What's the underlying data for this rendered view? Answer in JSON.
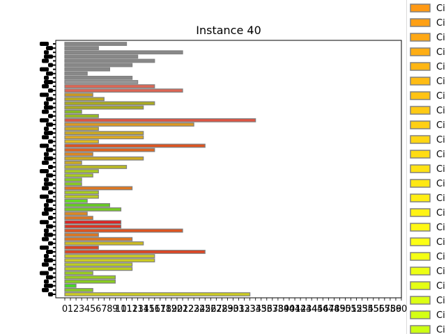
{
  "chart_data": {
    "type": "bar",
    "orientation": "horizontal",
    "title": "Instance 40",
    "xlabel": "",
    "ylabel": "",
    "xlim": [
      0,
      60
    ],
    "x_ticks": [
      "0",
      "1",
      "2",
      "3",
      "4",
      "5",
      "6",
      "7",
      "8",
      "9",
      "10",
      "11",
      "12",
      "13",
      "14",
      "15",
      "16",
      "17",
      "18",
      "19",
      "20",
      "21",
      "22",
      "23",
      "24",
      "25",
      "26",
      "27",
      "28",
      "29",
      "30",
      "31",
      "32",
      "33",
      "34",
      "35",
      "36",
      "37",
      "38",
      "39",
      "40",
      "41",
      "42",
      "43",
      "44",
      "45",
      "46",
      "47",
      "48",
      "49",
      "50",
      "51",
      "52",
      "53",
      "54",
      "55",
      "56",
      "57",
      "58",
      "59",
      "60"
    ],
    "grid": false,
    "legend_position": "right",
    "bar_edge_color": "#808080",
    "bars": [
      {
        "value": 33,
        "color": "#cccc22"
      },
      {
        "value": 5,
        "color": "#88cc22"
      },
      {
        "value": 2,
        "color": "#44dd22"
      },
      {
        "value": 9,
        "color": "#88cc22"
      },
      {
        "value": 9,
        "color": "#99cc22"
      },
      {
        "value": 5,
        "color": "#99cc22"
      },
      {
        "value": 12,
        "color": "#bbcc22"
      },
      {
        "value": 12,
        "color": "#bbcc22"
      },
      {
        "value": 16,
        "color": "#cccc22"
      },
      {
        "value": 16,
        "color": "#cccc22"
      },
      {
        "value": 25,
        "color": "#dd4422"
      },
      {
        "value": 6,
        "color": "#dd4422"
      },
      {
        "value": 14,
        "color": "#ccbb22"
      },
      {
        "value": 12,
        "color": "#dd7722"
      },
      {
        "value": 6,
        "color": "#dd7722"
      },
      {
        "value": 21,
        "color": "#dd5522"
      },
      {
        "value": 10,
        "color": "#dd3322"
      },
      {
        "value": 10,
        "color": "#dd2222"
      },
      {
        "value": 5,
        "color": "#dd7722"
      },
      {
        "value": 4,
        "color": "#dd8822"
      },
      {
        "value": 10,
        "color": "#77cc22"
      },
      {
        "value": 8,
        "color": "#66cc22"
      },
      {
        "value": 4,
        "color": "#66dd22"
      },
      {
        "value": 6,
        "color": "#bbcc22"
      },
      {
        "value": 6,
        "color": "#aacc22"
      },
      {
        "value": 12,
        "color": "#dd7722"
      },
      {
        "value": 3,
        "color": "#88cc22"
      },
      {
        "value": 3,
        "color": "#88cc22"
      },
      {
        "value": 5,
        "color": "#aacc22"
      },
      {
        "value": 6,
        "color": "#aacc22"
      },
      {
        "value": 11,
        "color": "#bbbb22"
      },
      {
        "value": 3,
        "color": "#ccaa22"
      },
      {
        "value": 14,
        "color": "#ccaa22"
      },
      {
        "value": 5,
        "color": "#dd8822"
      },
      {
        "value": 16,
        "color": "#dd6622"
      },
      {
        "value": 25,
        "color": "#dd5522"
      },
      {
        "value": 6,
        "color": "#ddbb22"
      },
      {
        "value": 14,
        "color": "#ddaa22"
      },
      {
        "value": 14,
        "color": "#ccaa22"
      },
      {
        "value": 6,
        "color": "#ccaa22"
      },
      {
        "value": 23,
        "color": "#dd9922"
      },
      {
        "value": 34,
        "color": "#dd5544"
      },
      {
        "value": 6,
        "color": "#99bb22"
      },
      {
        "value": 3,
        "color": "#88bb22"
      },
      {
        "value": 14,
        "color": "#aaaa22"
      },
      {
        "value": 16,
        "color": "#aaaa22"
      },
      {
        "value": 7,
        "color": "#bbaa22"
      },
      {
        "value": 5,
        "color": "#cc9922"
      },
      {
        "value": 21,
        "color": "#dd6655"
      },
      {
        "value": 16,
        "color": "#dd6655"
      },
      {
        "value": 13,
        "color": "#999999"
      },
      {
        "value": 12,
        "color": "#888888"
      },
      {
        "value": 4,
        "color": "#888888"
      },
      {
        "value": 8,
        "color": "#888888"
      },
      {
        "value": 12,
        "color": "#888888"
      },
      {
        "value": 16,
        "color": "#888888"
      },
      {
        "value": 13,
        "color": "#888888"
      },
      {
        "value": 21,
        "color": "#888888"
      },
      {
        "value": 6,
        "color": "#888888"
      },
      {
        "value": 11,
        "color": "#888888"
      }
    ],
    "legend": [
      {
        "label": "Ci",
        "color": "#ff9914"
      },
      {
        "label": "Ci",
        "color": "#ffa014"
      },
      {
        "label": "Ci",
        "color": "#ffa814"
      },
      {
        "label": "Ci",
        "color": "#ffae14"
      },
      {
        "label": "Ci",
        "color": "#ffb614"
      },
      {
        "label": "Ci",
        "color": "#ffbc14"
      },
      {
        "label": "Ci",
        "color": "#ffc314"
      },
      {
        "label": "Ci",
        "color": "#ffca14"
      },
      {
        "label": "Ci",
        "color": "#ffd014"
      },
      {
        "label": "Ci",
        "color": "#ffd614"
      },
      {
        "label": "Ci",
        "color": "#ffdc14"
      },
      {
        "label": "Ci",
        "color": "#ffe214"
      },
      {
        "label": "Ci",
        "color": "#ffe814"
      },
      {
        "label": "Ci",
        "color": "#ffee14"
      },
      {
        "label": "Ci",
        "color": "#fff314"
      },
      {
        "label": "Ci",
        "color": "#fff814"
      },
      {
        "label": "Ci",
        "color": "#fcff14"
      },
      {
        "label": "Ci",
        "color": "#f4ff14"
      },
      {
        "label": "Ci",
        "color": "#ecff14"
      },
      {
        "label": "Ci",
        "color": "#e4ff14"
      },
      {
        "label": "Ci",
        "color": "#dcff14"
      },
      {
        "label": "Ci",
        "color": "#d4ff14"
      },
      {
        "label": "Ci",
        "color": "#ccff14"
      }
    ]
  }
}
